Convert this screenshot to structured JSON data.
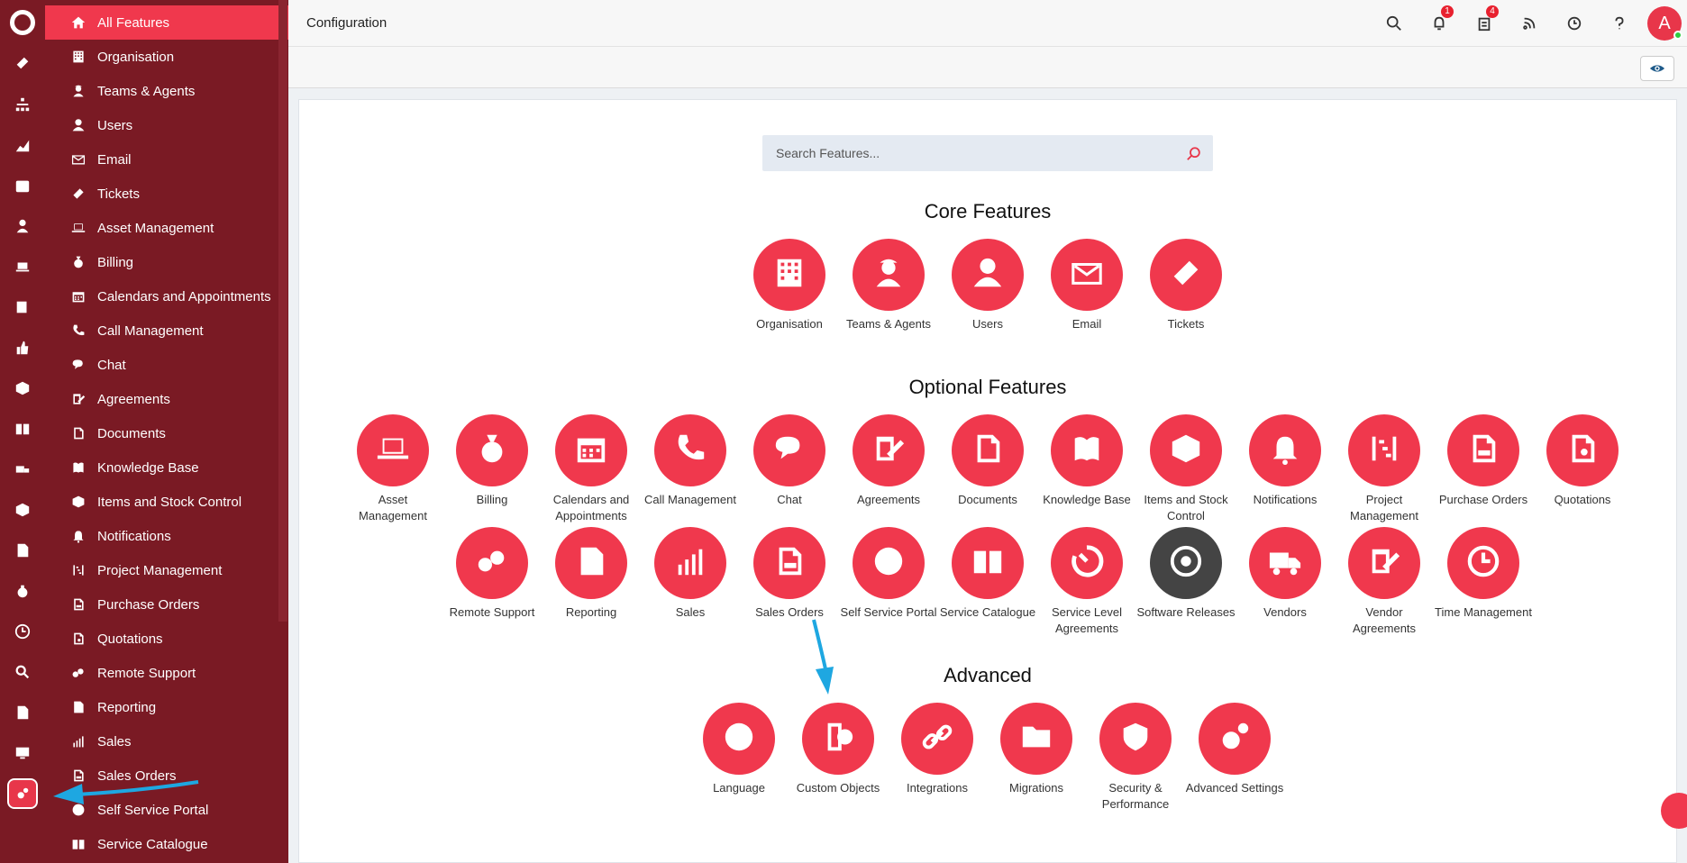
{
  "header": {
    "title": "Configuration",
    "notifications_badge": "1",
    "tasks_badge": "4",
    "avatar_initial": "A"
  },
  "sidebar": {
    "items": [
      {
        "label": "All Features",
        "icon": "home-icon"
      },
      {
        "label": "Organisation",
        "icon": "building-icon"
      },
      {
        "label": "Teams & Agents",
        "icon": "agent-icon"
      },
      {
        "label": "Users",
        "icon": "user-icon"
      },
      {
        "label": "Email",
        "icon": "email-icon"
      },
      {
        "label": "Tickets",
        "icon": "ticket-icon"
      },
      {
        "label": "Asset Management",
        "icon": "laptop-icon"
      },
      {
        "label": "Billing",
        "icon": "money-bag-icon"
      },
      {
        "label": "Calendars and Appointments",
        "icon": "calendar-icon"
      },
      {
        "label": "Call Management",
        "icon": "phone-icon"
      },
      {
        "label": "Chat",
        "icon": "chat-icon"
      },
      {
        "label": "Agreements",
        "icon": "agreement-icon"
      },
      {
        "label": "Documents",
        "icon": "document-icon"
      },
      {
        "label": "Knowledge Base",
        "icon": "book-icon"
      },
      {
        "label": "Items and Stock Control",
        "icon": "box-icon"
      },
      {
        "label": "Notifications",
        "icon": "bell-icon"
      },
      {
        "label": "Project Management",
        "icon": "project-icon"
      },
      {
        "label": "Purchase Orders",
        "icon": "po-icon"
      },
      {
        "label": "Quotations",
        "icon": "quote-icon"
      },
      {
        "label": "Remote Support",
        "icon": "remote-icon"
      },
      {
        "label": "Reporting",
        "icon": "report-icon"
      },
      {
        "label": "Sales",
        "icon": "chart-icon"
      },
      {
        "label": "Sales Orders",
        "icon": "so-icon"
      },
      {
        "label": "Self Service Portal",
        "icon": "globe-icon"
      },
      {
        "label": "Service Catalogue",
        "icon": "catalogue-icon"
      }
    ]
  },
  "search": {
    "placeholder": "Search Features..."
  },
  "sections": {
    "core": "Core Features",
    "optional": "Optional Features",
    "advanced": "Advanced"
  },
  "core_features": [
    {
      "label": "Organisation",
      "icon": "building-icon"
    },
    {
      "label": "Teams & Agents",
      "icon": "agent-icon"
    },
    {
      "label": "Users",
      "icon": "user-icon"
    },
    {
      "label": "Email",
      "icon": "email-icon"
    },
    {
      "label": "Tickets",
      "icon": "ticket-icon"
    }
  ],
  "optional_features": [
    {
      "label": "Asset Management",
      "icon": "laptop-icon"
    },
    {
      "label": "Billing",
      "icon": "money-bag-icon"
    },
    {
      "label": "Calendars and Appointments",
      "icon": "calendar-icon"
    },
    {
      "label": "Call Management",
      "icon": "phone-icon"
    },
    {
      "label": "Chat",
      "icon": "chat-icon"
    },
    {
      "label": "Agreements",
      "icon": "agreement-icon"
    },
    {
      "label": "Documents",
      "icon": "document-icon"
    },
    {
      "label": "Knowledge Base",
      "icon": "book-icon"
    },
    {
      "label": "Items and Stock Control",
      "icon": "box-icon"
    },
    {
      "label": "Notifications",
      "icon": "bell-icon"
    },
    {
      "label": "Project Management",
      "icon": "project-icon"
    },
    {
      "label": "Purchase Orders",
      "icon": "po-icon"
    },
    {
      "label": "Quotations",
      "icon": "quote-icon"
    },
    {
      "label": "Remote Support",
      "icon": "remote-icon"
    },
    {
      "label": "Reporting",
      "icon": "report-icon"
    },
    {
      "label": "Sales",
      "icon": "chart-icon"
    },
    {
      "label": "Sales Orders",
      "icon": "so-icon"
    },
    {
      "label": "Self Service Portal",
      "icon": "globe-icon"
    },
    {
      "label": "Service Catalogue",
      "icon": "catalogue-icon"
    },
    {
      "label": "Service Level Agreements",
      "icon": "timer-icon"
    },
    {
      "label": "Software Releases",
      "icon": "disc-icon"
    },
    {
      "label": "Vendors",
      "icon": "truck-icon"
    },
    {
      "label": "Vendor Agreements",
      "icon": "agreement-icon"
    },
    {
      "label": "Time Management",
      "icon": "clock-icon"
    }
  ],
  "advanced_features": [
    {
      "label": "Language",
      "icon": "globe-icon"
    },
    {
      "label": "Custom Objects",
      "icon": "custom-object-icon"
    },
    {
      "label": "Integrations",
      "icon": "link-icon"
    },
    {
      "label": "Migrations",
      "icon": "folders-icon"
    },
    {
      "label": "Security & Performance",
      "icon": "shield-icon"
    },
    {
      "label": "Advanced Settings",
      "icon": "gears-icon"
    }
  ],
  "colors": {
    "brand": "#f0384d",
    "sidebar": "#7a1a24",
    "annotation_arrow": "#1ea7e1",
    "dark_feature": "#444444"
  }
}
